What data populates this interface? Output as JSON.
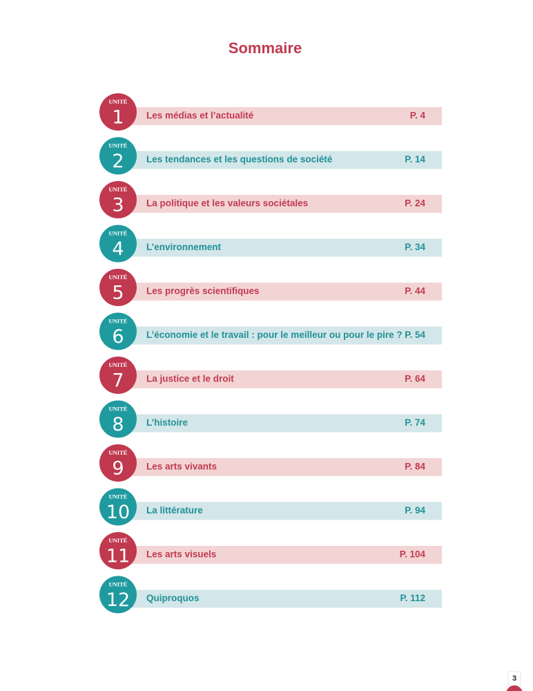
{
  "header": {
    "title": "Sommaire"
  },
  "units": [
    {
      "label": "UNITÉ",
      "number": 1,
      "title": "Les médias et l’actualité",
      "page": "P. 4"
    },
    {
      "label": "UNITÉ",
      "number": 2,
      "title": "Les tendances et les questions de société",
      "page": "P. 14"
    },
    {
      "label": "UNITÉ",
      "number": 3,
      "title": "La politique et les valeurs sociétales",
      "page": "P. 24"
    },
    {
      "label": "UNITÉ",
      "number": 4,
      "title": "L’environnement",
      "page": "P. 34"
    },
    {
      "label": "UNITÉ",
      "number": 5,
      "title": "Les progrès scientifiques",
      "page": "P. 44"
    },
    {
      "label": "UNITÉ",
      "number": 6,
      "title": "L’économie et le travail  : pour le meilleur ou pour le pire  ?",
      "page": "P. 54"
    },
    {
      "label": "UNITÉ",
      "number": 7,
      "title": "La justice et le droit",
      "page": "P. 64"
    },
    {
      "label": "UNITÉ",
      "number": 8,
      "title": "L’histoire",
      "page": "P. 74"
    },
    {
      "label": "UNITÉ",
      "number": 9,
      "title": "Les arts vivants",
      "page": "P. 84"
    },
    {
      "label": "UNITÉ",
      "number": 10,
      "title": "La littérature",
      "page": "P. 94"
    },
    {
      "label": "UNITÉ",
      "number": 11,
      "title": "Les arts visuels",
      "page": "P. 104"
    },
    {
      "label": "UNITÉ",
      "number": 12,
      "title": "Quiproquos",
      "page": "P. 112"
    }
  ],
  "footer": {
    "page_number": 3
  }
}
